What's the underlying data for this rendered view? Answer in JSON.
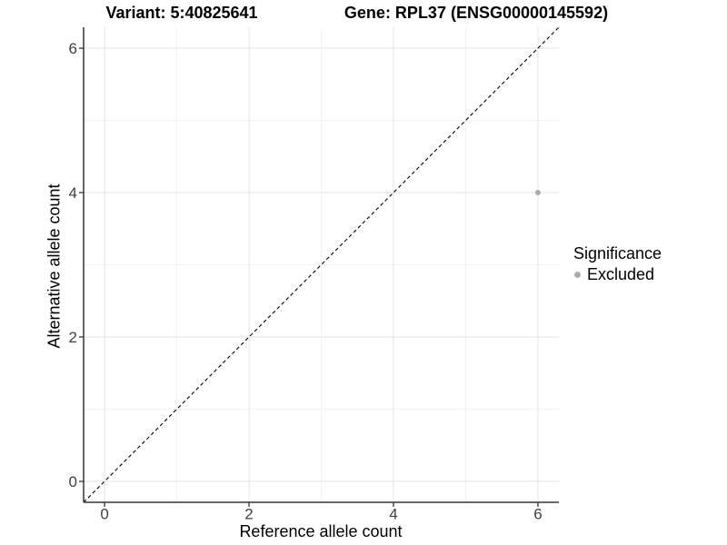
{
  "header": {
    "variant_title": "Variant: 5:40825641",
    "gene_title": "Gene: RPL37 (ENSG00000145592)"
  },
  "chart_data": {
    "type": "scatter",
    "title_left": "Variant: 5:40825641",
    "title_right": "Gene: RPL37 (ENSG00000145592)",
    "xlabel": "Reference allele count",
    "ylabel": "Alternative allele count",
    "xlim": [
      -0.29,
      6.29
    ],
    "ylim": [
      -0.29,
      6.29
    ],
    "xticks": [
      0,
      2,
      4,
      6
    ],
    "yticks": [
      0,
      2,
      4,
      6
    ],
    "xticks_minor": [
      1,
      3,
      5
    ],
    "yticks_minor": [
      1,
      3,
      5
    ],
    "grid": "on",
    "points": [
      {
        "x": 6,
        "y": 4,
        "series": "Excluded"
      }
    ],
    "identity_line": {
      "type": "dashed",
      "slope": 1,
      "intercept": 0
    },
    "legend": {
      "title": "Significance",
      "position": "right",
      "entries": [
        {
          "label": "Excluded",
          "color": "#ababab"
        }
      ]
    }
  },
  "colors": {
    "background": "#ffffff",
    "grid_major": "#e7e7e7",
    "grid_minor": "#f2f2f2",
    "axis_line": "#333333",
    "tick_mark": "#333333",
    "tick_label": "#404040",
    "text": "#000000",
    "point": "#ababab",
    "identity_line": "#000000"
  }
}
